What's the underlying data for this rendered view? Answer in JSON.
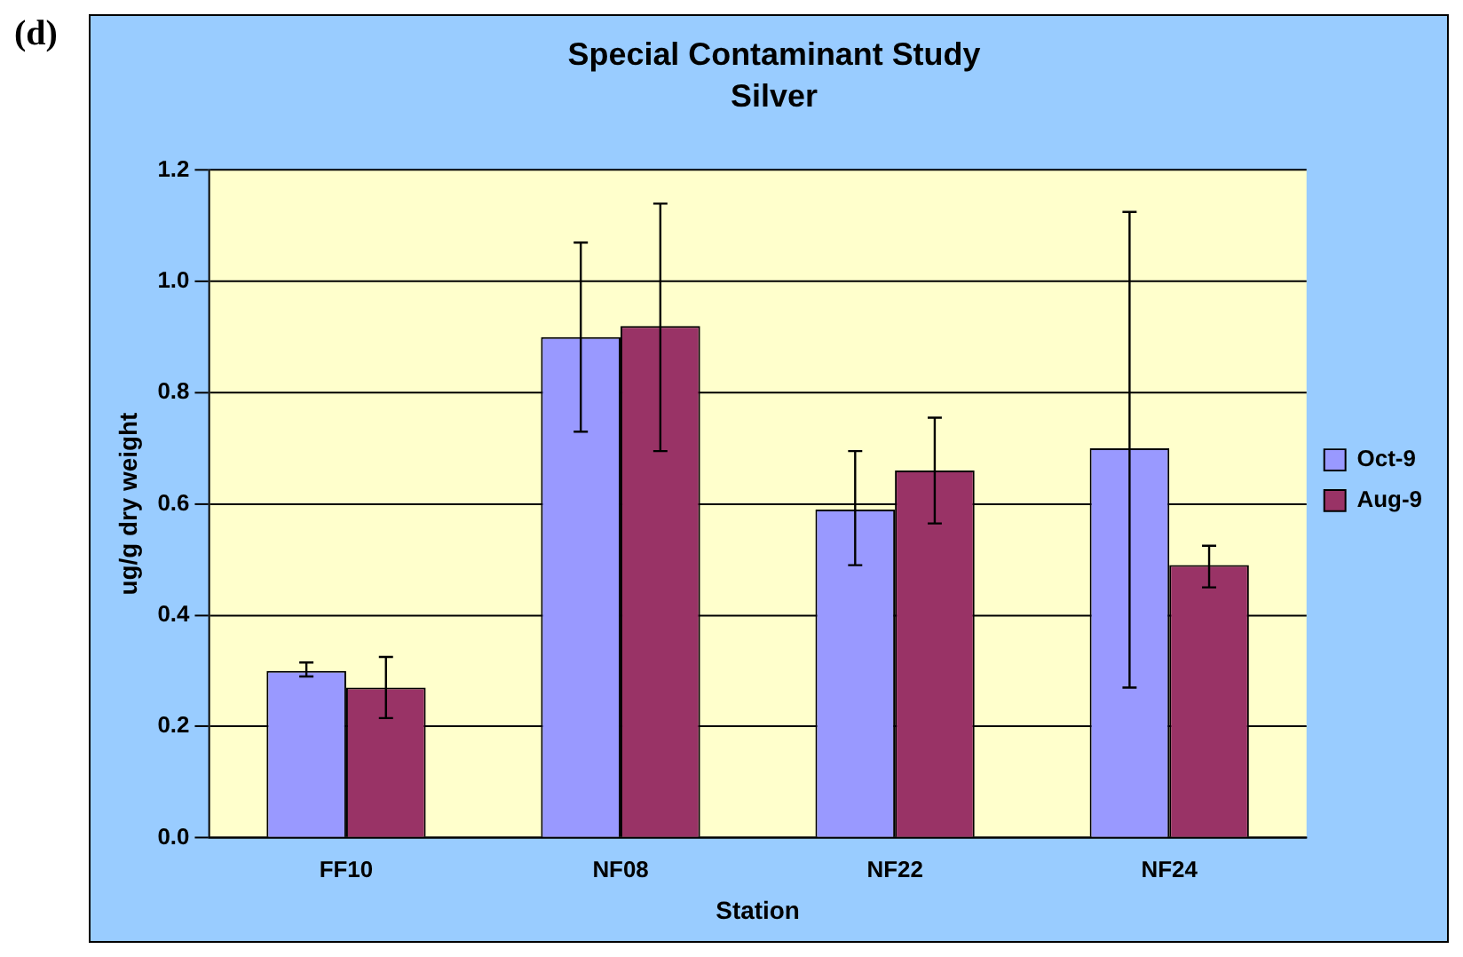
{
  "chart_data": {
    "type": "bar",
    "title": "Special Contaminant Study",
    "subtitle": "Silver",
    "xlabel": "Station",
    "ylabel": "ug/g dry weight",
    "annotations": [
      "(d)"
    ],
    "categories": [
      "FF10",
      "NF08",
      "NF22",
      "NF24"
    ],
    "series": [
      {
        "name": "Oct-9",
        "color": "#9999ff",
        "values": [
          0.3,
          0.9,
          0.59,
          0.7
        ],
        "errors": [
          [
            0.29,
            0.315
          ],
          [
            0.73,
            1.07
          ],
          [
            0.49,
            0.695
          ],
          [
            0.27,
            1.125
          ]
        ]
      },
      {
        "name": "Aug-9",
        "color": "#993366",
        "values": [
          0.27,
          0.92,
          0.66,
          0.49
        ],
        "errors": [
          [
            0.215,
            0.325
          ],
          [
            0.695,
            1.14
          ],
          [
            0.565,
            0.755
          ],
          [
            0.45,
            0.525
          ]
        ]
      }
    ],
    "ylim": [
      0,
      1.2
    ],
    "yticks": [
      {
        "value": 0,
        "label": "0.0"
      },
      0.2,
      0.4,
      0.6,
      0.8,
      {
        "value": 1,
        "label": "1.0"
      },
      1.2
    ],
    "grid": "y",
    "legend": "right"
  }
}
